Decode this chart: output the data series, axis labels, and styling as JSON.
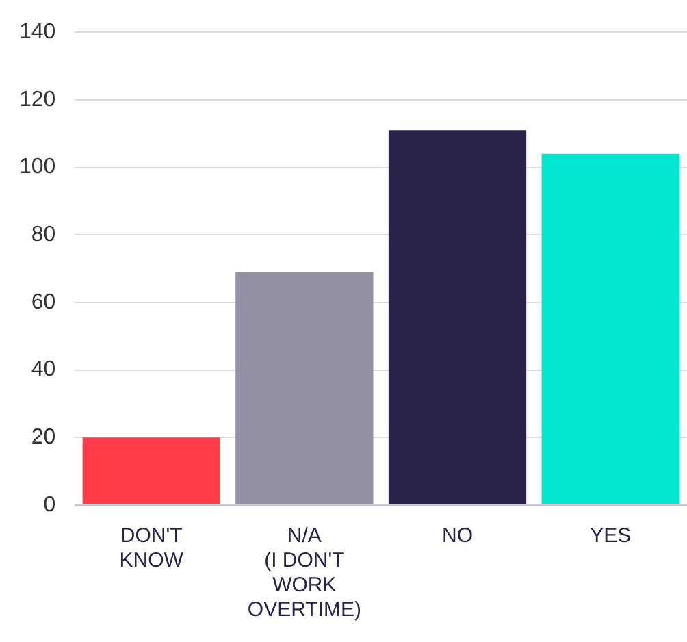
{
  "chart_data": {
    "type": "bar",
    "categories": [
      "DON'T\nKNOW",
      "N/A\n(I DON'T\nWORK\nOVERTIME)",
      "NO",
      "YES"
    ],
    "values": [
      20,
      69,
      111,
      104
    ],
    "colors": [
      "#ff3b4a",
      "#948fa4",
      "#2a2349",
      "#00e6d0"
    ],
    "ylim": [
      0,
      140
    ],
    "yticks": [
      0,
      20,
      40,
      60,
      80,
      100,
      120,
      140
    ],
    "grid": "y",
    "legend": false
  }
}
